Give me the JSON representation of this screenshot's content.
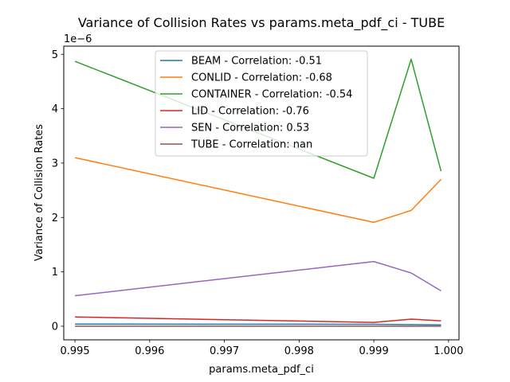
{
  "chart_data": {
    "type": "line",
    "title": "Variance of Collision Rates vs params.meta_pdf_ci - TUBE",
    "xlabel": "params.meta_pdf_ci",
    "ylabel": "Variance of Collision Rates",
    "y_multiplier_label": "1e−6",
    "xlim": [
      0.99485,
      1.00014
    ],
    "ylim": [
      -0.25,
      5.15
    ],
    "x_ticks": [
      0.995,
      0.996,
      0.997,
      0.998,
      0.999,
      1.0
    ],
    "x_tick_labels": [
      "0.995",
      "0.996",
      "0.997",
      "0.998",
      "0.999",
      "1.000"
    ],
    "y_ticks": [
      0,
      1,
      2,
      3,
      4,
      5
    ],
    "y_tick_labels": [
      "0",
      "1",
      "2",
      "3",
      "4",
      "5"
    ],
    "grid": false,
    "legend_position": "upper-center",
    "x": [
      0.995,
      0.999,
      0.9995,
      0.9999
    ],
    "series": [
      {
        "name": "BEAM - Correlation: -0.51",
        "color": "#1f77b4",
        "values": [
          0.04,
          0.035,
          0.03,
          0.025
        ]
      },
      {
        "name": "CONLID - Correlation: -0.68",
        "color": "#ff7f0e",
        "values": [
          3.1,
          1.91,
          2.13,
          2.7
        ]
      },
      {
        "name": "CONTAINER - Correlation: -0.54",
        "color": "#2ca02c",
        "values": [
          4.87,
          2.72,
          4.91,
          2.85
        ]
      },
      {
        "name": "LID - Correlation: -0.76",
        "color": "#d62728",
        "values": [
          0.17,
          0.07,
          0.13,
          0.1
        ]
      },
      {
        "name": "SEN - Correlation: 0.53",
        "color": "#9467bd",
        "values": [
          0.56,
          1.19,
          0.98,
          0.65
        ]
      },
      {
        "name": "TUBE - Correlation: nan",
        "color": "#8c564b",
        "values": [
          0.0,
          0.0,
          0.0,
          0.0
        ]
      }
    ]
  }
}
